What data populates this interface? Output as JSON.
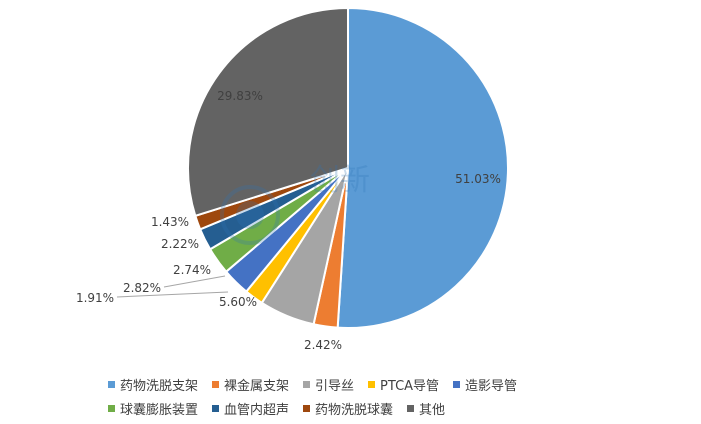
{
  "chart_data": {
    "type": "pie",
    "title": "",
    "start_angle_deg": 0,
    "direction": "clockwise",
    "slices": [
      {
        "label": "药物洗脱支架",
        "value": 51.03,
        "display": "51.03%",
        "color": "#5b9bd5"
      },
      {
        "label": "裸金属支架",
        "value": 2.42,
        "display": "2.42%",
        "color": "#ed7d31"
      },
      {
        "label": "引导丝",
        "value": 5.6,
        "display": "5.60%",
        "color": "#a5a5a5"
      },
      {
        "label": "PTCA导管",
        "value": 1.91,
        "display": "1.91%",
        "color": "#ffc000"
      },
      {
        "label": "造影导管",
        "value": 2.82,
        "display": "2.82%",
        "color": "#4472c4"
      },
      {
        "label": "球囊膨胀装置",
        "value": 2.74,
        "display": "2.74%",
        "color": "#70ad47"
      },
      {
        "label": "血管内超声",
        "value": 2.22,
        "display": "2.22%",
        "color": "#255e91"
      },
      {
        "label": "药物洗脱球囊",
        "value": 1.43,
        "display": "1.43%",
        "color": "#9e480e"
      },
      {
        "label": "其他",
        "value": 29.83,
        "display": "29.83%",
        "color": "#636363"
      }
    ],
    "legend_position": "bottom"
  },
  "watermark_text": "创新"
}
